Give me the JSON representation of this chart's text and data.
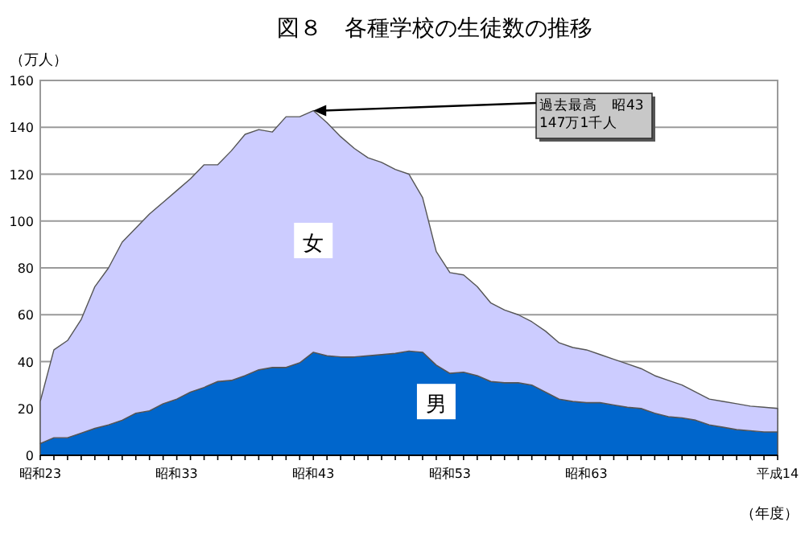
{
  "chart_data": {
    "type": "area",
    "stacked": true,
    "title": "図８　各種学校の生徒数の推移",
    "ylabel": "（万人）",
    "xlabel": "（年度）",
    "categories": [
      "昭和23",
      null,
      null,
      null,
      null,
      null,
      null,
      null,
      null,
      null,
      "昭和33",
      null,
      null,
      null,
      null,
      null,
      null,
      null,
      null,
      null,
      "昭和43",
      null,
      null,
      null,
      null,
      null,
      null,
      null,
      null,
      null,
      "昭和53",
      null,
      null,
      null,
      null,
      null,
      null,
      null,
      null,
      null,
      "昭和63",
      null,
      null,
      null,
      null,
      null,
      null,
      null,
      null,
      null,
      null,
      null,
      null,
      null,
      "平成14"
    ],
    "series": [
      {
        "name": "男",
        "color": "#0066cc",
        "values": [
          5,
          7.5,
          7.5,
          9.5,
          11.5,
          13,
          15,
          18,
          19,
          22,
          24,
          27,
          29,
          31.5,
          32,
          34,
          36.5,
          37.5,
          37.5,
          39.5,
          44,
          42.5,
          42,
          42,
          42.5,
          43,
          43.5,
          44.5,
          44,
          38.5,
          35,
          35.5,
          34,
          31.5,
          31,
          31,
          30,
          27,
          24,
          23,
          22.5,
          22.5,
          21.5,
          20.5,
          20,
          18,
          16.5,
          16,
          15,
          13,
          12,
          11,
          10.5,
          10,
          10
        ]
      },
      {
        "name": "女",
        "color": "#ccccff",
        "values": [
          18,
          37.5,
          41.5,
          48.5,
          60.5,
          67,
          76,
          79,
          84,
          86,
          89,
          91,
          95,
          92.5,
          98,
          103,
          102.5,
          100.5,
          107,
          105,
          103.1,
          99.5,
          94,
          89,
          84.5,
          82,
          78.5,
          75.5,
          66,
          48.5,
          43,
          41.5,
          38,
          33.5,
          31,
          29,
          27,
          26,
          24,
          23,
          22.5,
          20.5,
          19.5,
          18.5,
          17,
          16,
          15.5,
          14,
          12,
          11,
          11,
          11,
          10.5,
          10.5,
          10
        ]
      }
    ],
    "ylim": [
      0,
      160
    ],
    "yticks": [
      0,
      20,
      40,
      60,
      80,
      100,
      120,
      140,
      160
    ],
    "grid": "y",
    "annotations": [
      {
        "text": "過去最高　昭43\n147万1千人",
        "x": "昭和43",
        "y": 147.1
      }
    ]
  }
}
